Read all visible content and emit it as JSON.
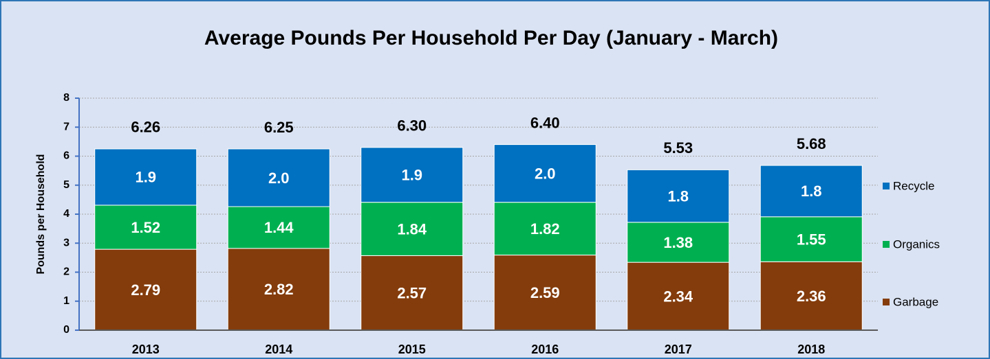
{
  "chart_data": {
    "type": "stacked_bar",
    "title": "Average Pounds Per Household Per Day  (January - March)",
    "y_label": "Pounds per Household",
    "categories": [
      "2013",
      "2014",
      "2015",
      "2016",
      "2017",
      "2018"
    ],
    "series": [
      {
        "name": "Garbage",
        "color": "#843c0c",
        "values": [
          2.79,
          2.82,
          2.57,
          2.59,
          2.34,
          2.36
        ]
      },
      {
        "name": "Organics",
        "color": "#00b050",
        "values": [
          1.52,
          1.44,
          1.84,
          1.82,
          1.38,
          1.55
        ]
      },
      {
        "name": "Recycle",
        "color": "#0070c0",
        "values": [
          1.94,
          1.99,
          1.89,
          1.99,
          1.81,
          1.77
        ],
        "value_labels": [
          "1.9",
          "2.0",
          "1.9",
          "2.0",
          "1.8",
          "1.8"
        ]
      }
    ],
    "totals": [
      6.26,
      6.25,
      6.3,
      6.4,
      5.53,
      5.68
    ],
    "total_labels": [
      "6.26",
      "6.25",
      "6.30",
      "6.40",
      "5.53",
      "5.68"
    ],
    "ylim": [
      0,
      8
    ],
    "yticks": [
      0,
      1,
      2,
      3,
      4,
      5,
      6,
      7,
      8
    ],
    "grid": true,
    "legend": "right"
  }
}
